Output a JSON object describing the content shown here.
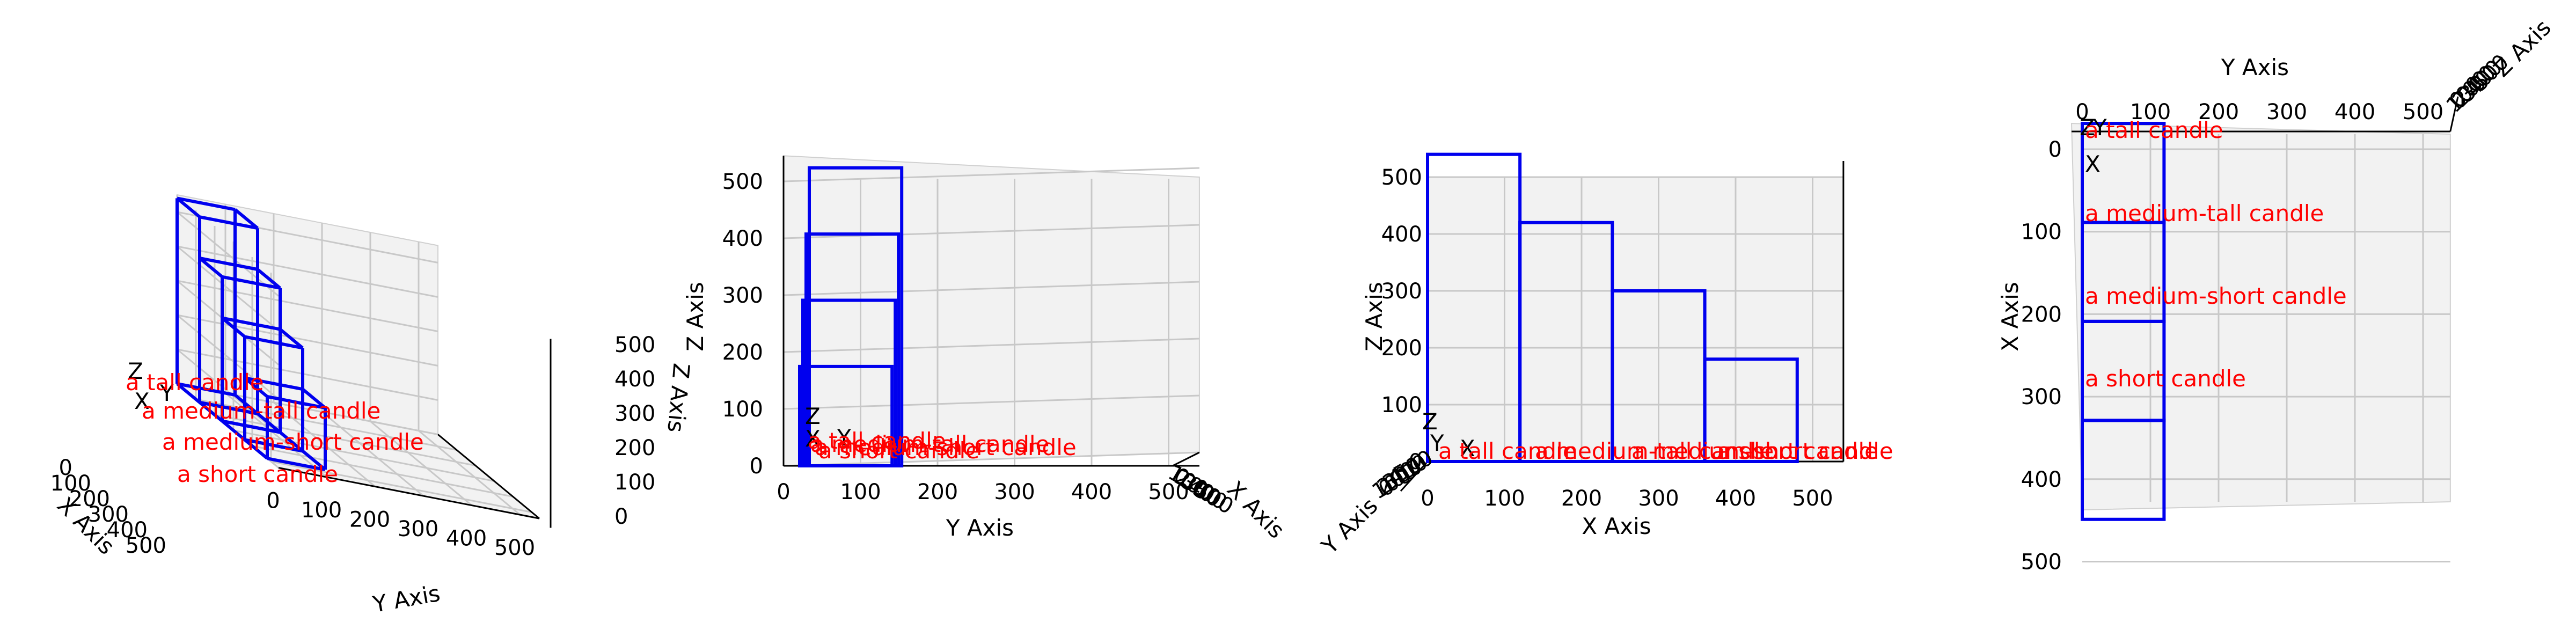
{
  "chart_data": {
    "type": "3d-wireframe",
    "axes": {
      "x_label": "X Axis",
      "y_label": "Y Axis",
      "z_label": "Z Axis",
      "x_ticks": [
        "0",
        "100",
        "200",
        "300",
        "400",
        "500"
      ],
      "y_ticks": [
        "0",
        "100",
        "200",
        "300",
        "400",
        "500"
      ],
      "z_ticks": [
        "0",
        "100",
        "200",
        "300",
        "400",
        "500"
      ],
      "xlim": [
        0,
        500
      ],
      "ylim": [
        0,
        500
      ],
      "zlim": [
        0,
        500
      ],
      "grid": true
    },
    "origin_marker": {
      "x_label": "X",
      "y_label": "Y",
      "z_label": "Z",
      "colors": {
        "x": "#ff0000",
        "y": "#008000",
        "z": "#0000ff"
      }
    },
    "candles": [
      {
        "name": "a tall candle",
        "x": [
          0,
          120
        ],
        "y": [
          0,
          120
        ],
        "z": [
          0,
          540
        ]
      },
      {
        "name": "a medium-tall candle",
        "x": [
          120,
          240
        ],
        "y": [
          0,
          120
        ],
        "z": [
          0,
          420
        ]
      },
      {
        "name": "a medium-short candle",
        "x": [
          240,
          360
        ],
        "y": [
          0,
          120
        ],
        "z": [
          0,
          300
        ]
      },
      {
        "name": "a short candle",
        "x": [
          360,
          480
        ],
        "y": [
          0,
          120
        ],
        "z": [
          0,
          180
        ]
      }
    ],
    "views": [
      "perspective",
      "front (Y-Z)",
      "side (X-Z)",
      "top (Y-X)"
    ],
    "colors": {
      "box": "#0000ee",
      "label": "#ff0000",
      "grid": "#c8c8c8",
      "pane": "#f2f2f2"
    }
  }
}
